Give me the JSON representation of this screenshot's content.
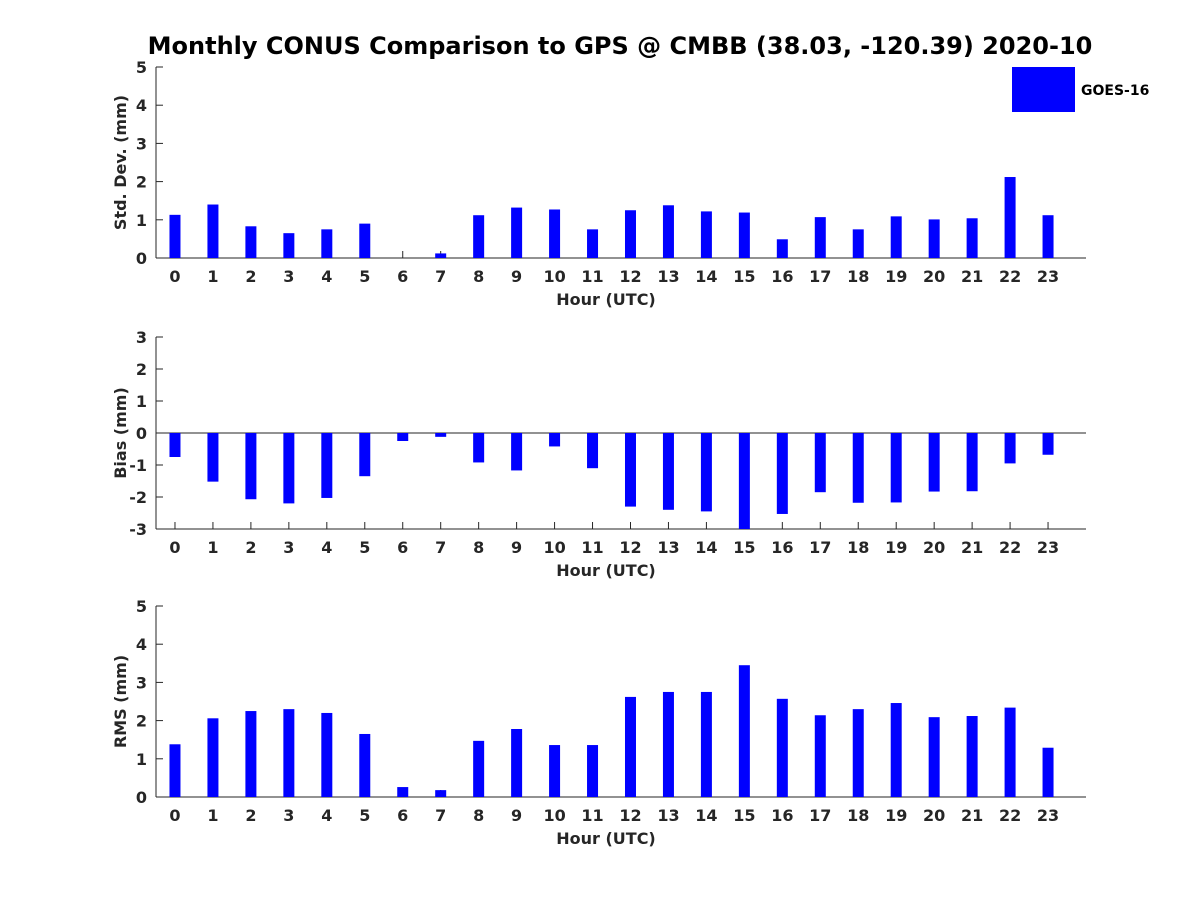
{
  "title": "Monthly CONUS Comparison to GPS @ CMBB (38.03, -120.39) 2020-10",
  "legend": {
    "label": "GOES-16",
    "color": "#0000ff",
    "placement": "top-right"
  },
  "chart_data": [
    {
      "type": "bar",
      "name": "std-dev",
      "categories": [
        "0",
        "1",
        "2",
        "3",
        "4",
        "5",
        "6",
        "7",
        "8",
        "9",
        "10",
        "11",
        "12",
        "13",
        "14",
        "15",
        "16",
        "17",
        "18",
        "19",
        "20",
        "21",
        "22",
        "23"
      ],
      "series": [
        {
          "name": "GOES-16",
          "values": [
            1.13,
            1.4,
            0.83,
            0.65,
            0.75,
            0.9,
            0.0,
            0.12,
            1.12,
            1.32,
            1.27,
            0.75,
            1.25,
            1.38,
            1.22,
            1.19,
            0.49,
            1.07,
            0.75,
            1.09,
            1.01,
            1.04,
            2.12,
            1.12
          ]
        }
      ],
      "xlabel": "Hour (UTC)",
      "ylabel": "Std. Dev. (mm)",
      "ylim": [
        0,
        5
      ],
      "yticks": [
        0,
        1,
        2,
        3,
        4,
        5
      ],
      "grid": false
    },
    {
      "type": "bar",
      "name": "bias",
      "categories": [
        "0",
        "1",
        "2",
        "3",
        "4",
        "5",
        "6",
        "7",
        "8",
        "9",
        "10",
        "11",
        "12",
        "13",
        "14",
        "15",
        "16",
        "17",
        "18",
        "19",
        "20",
        "21",
        "22",
        "23"
      ],
      "series": [
        {
          "name": "GOES-16",
          "values": [
            -0.75,
            -1.52,
            -2.07,
            -2.2,
            -2.03,
            -1.35,
            -0.25,
            -0.12,
            -0.92,
            -1.17,
            -0.42,
            -1.1,
            -2.3,
            -2.4,
            -2.45,
            -3.0,
            -2.53,
            -1.85,
            -2.18,
            -2.17,
            -1.83,
            -1.82,
            -0.95,
            -0.68
          ]
        }
      ],
      "xlabel": "Hour (UTC)",
      "ylabel": "Bias (mm)",
      "ylim": [
        -3,
        3
      ],
      "yticks": [
        -3,
        -2,
        -1,
        0,
        1,
        2,
        3
      ],
      "grid": false
    },
    {
      "type": "bar",
      "name": "rms",
      "categories": [
        "0",
        "1",
        "2",
        "3",
        "4",
        "5",
        "6",
        "7",
        "8",
        "9",
        "10",
        "11",
        "12",
        "13",
        "14",
        "15",
        "16",
        "17",
        "18",
        "19",
        "20",
        "21",
        "22",
        "23"
      ],
      "series": [
        {
          "name": "GOES-16",
          "values": [
            1.38,
            2.06,
            2.25,
            2.3,
            2.2,
            1.65,
            0.26,
            0.18,
            1.47,
            1.78,
            1.36,
            1.36,
            2.62,
            2.75,
            2.75,
            3.45,
            2.57,
            2.14,
            2.3,
            2.46,
            2.09,
            2.12,
            2.34,
            1.29
          ]
        }
      ],
      "xlabel": "Hour (UTC)",
      "ylabel": "RMS (mm)",
      "ylim": [
        0,
        5
      ],
      "yticks": [
        0,
        1,
        2,
        3,
        4,
        5
      ],
      "grid": false
    }
  ]
}
